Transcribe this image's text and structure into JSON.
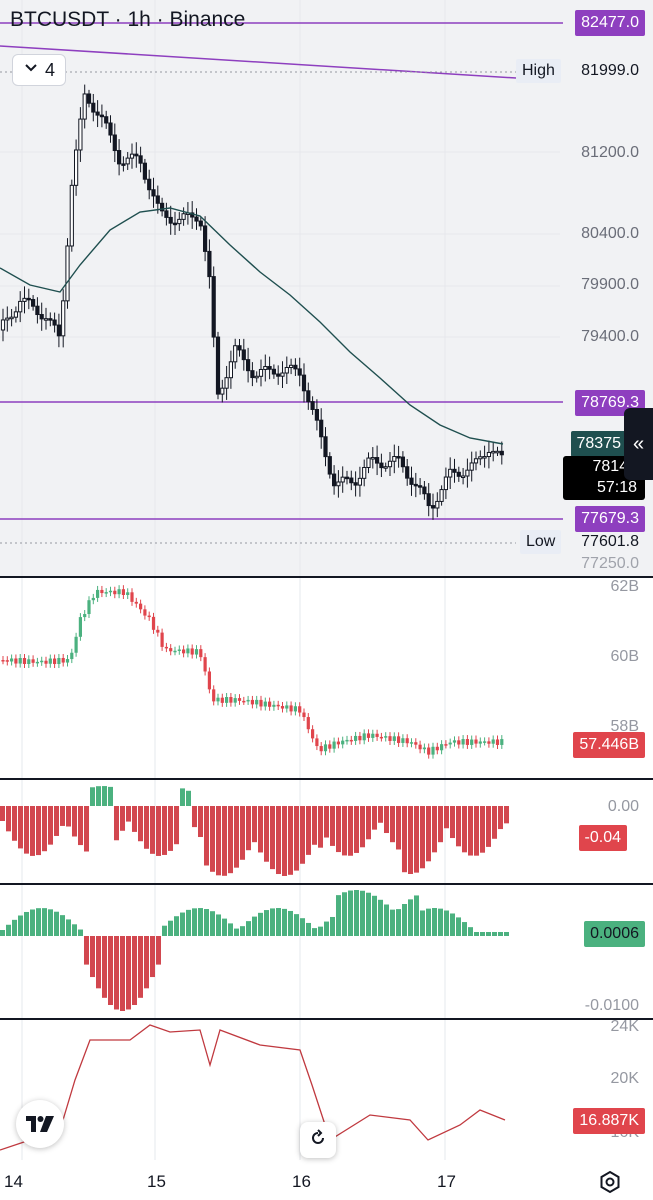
{
  "header": {
    "title": "BTCUSDT · 1h · Binance",
    "indicator_count": "4"
  },
  "price_pane": {
    "levels": [
      {
        "value": "82477.0",
        "color": "#8e3fbf"
      },
      {
        "value": "78769.3",
        "color": "#8e3fbf"
      },
      {
        "value": "77679.3",
        "color": "#8e3fbf"
      }
    ],
    "high": {
      "label": "High",
      "value": "81999.0"
    },
    "low": {
      "label": "Low",
      "value": "77601.8"
    },
    "axis_ticks": [
      "81200.0",
      "80400.0",
      "79900.0",
      "79400.0",
      "77250.0"
    ],
    "ema_value": "78375",
    "last_price": "78149",
    "countdown": "57:18"
  },
  "volume_pane": {
    "axis_ticks": [
      "62B",
      "60B",
      "58B"
    ],
    "current": "57.446B",
    "current_color": "#e0454c"
  },
  "osc1_pane": {
    "axis_ticks": [
      "0.00"
    ],
    "current": "-0.04",
    "current_color": "#e0454c"
  },
  "osc2_pane": {
    "axis_ticks": [
      "-0.0100"
    ],
    "current": "0.0006",
    "current_color": "#4bb17f"
  },
  "line_pane": {
    "axis_ticks": [
      "24K",
      "20K",
      "16K"
    ],
    "current": "16.887K",
    "current_color": "#e0454c"
  },
  "time_axis": [
    "14",
    "15",
    "16",
    "17"
  ],
  "icons": {
    "logo": "tradingview-logo-icon",
    "reset": "reset-icon",
    "settings": "gear-icon",
    "collapse": "double-chevron-left-icon"
  }
}
